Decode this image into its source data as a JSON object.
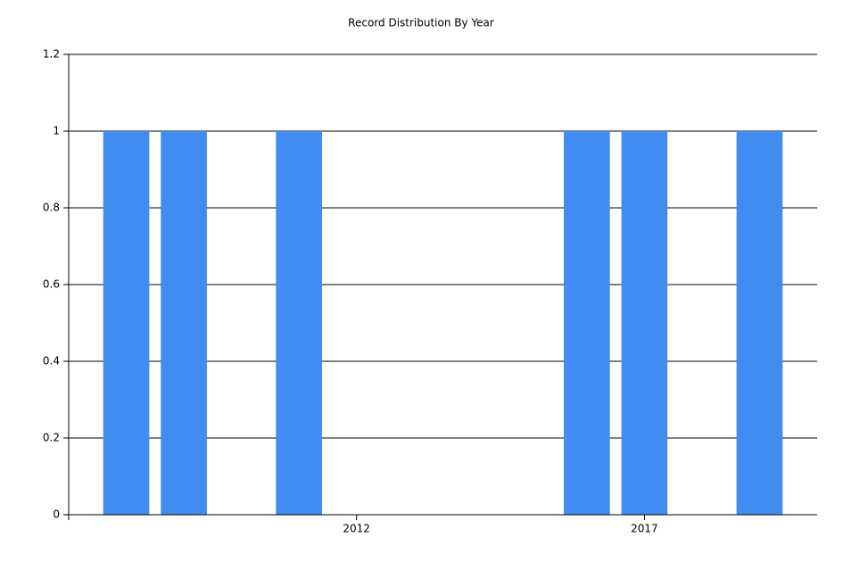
{
  "chart_data": {
    "type": "bar",
    "title": "Record Distribution By Year",
    "x": [
      2008,
      2009,
      2011,
      2016,
      2017,
      2019
    ],
    "values": [
      1,
      1,
      1,
      1,
      1,
      1
    ],
    "color": "#418cf0",
    "xlim": [
      2007,
      2020
    ],
    "xticks": [
      2012,
      2017
    ],
    "ylim": [
      0,
      1.2
    ],
    "yticks": [
      0,
      0.2,
      0.4,
      0.6,
      0.8,
      1,
      1.2
    ],
    "grid": true
  }
}
